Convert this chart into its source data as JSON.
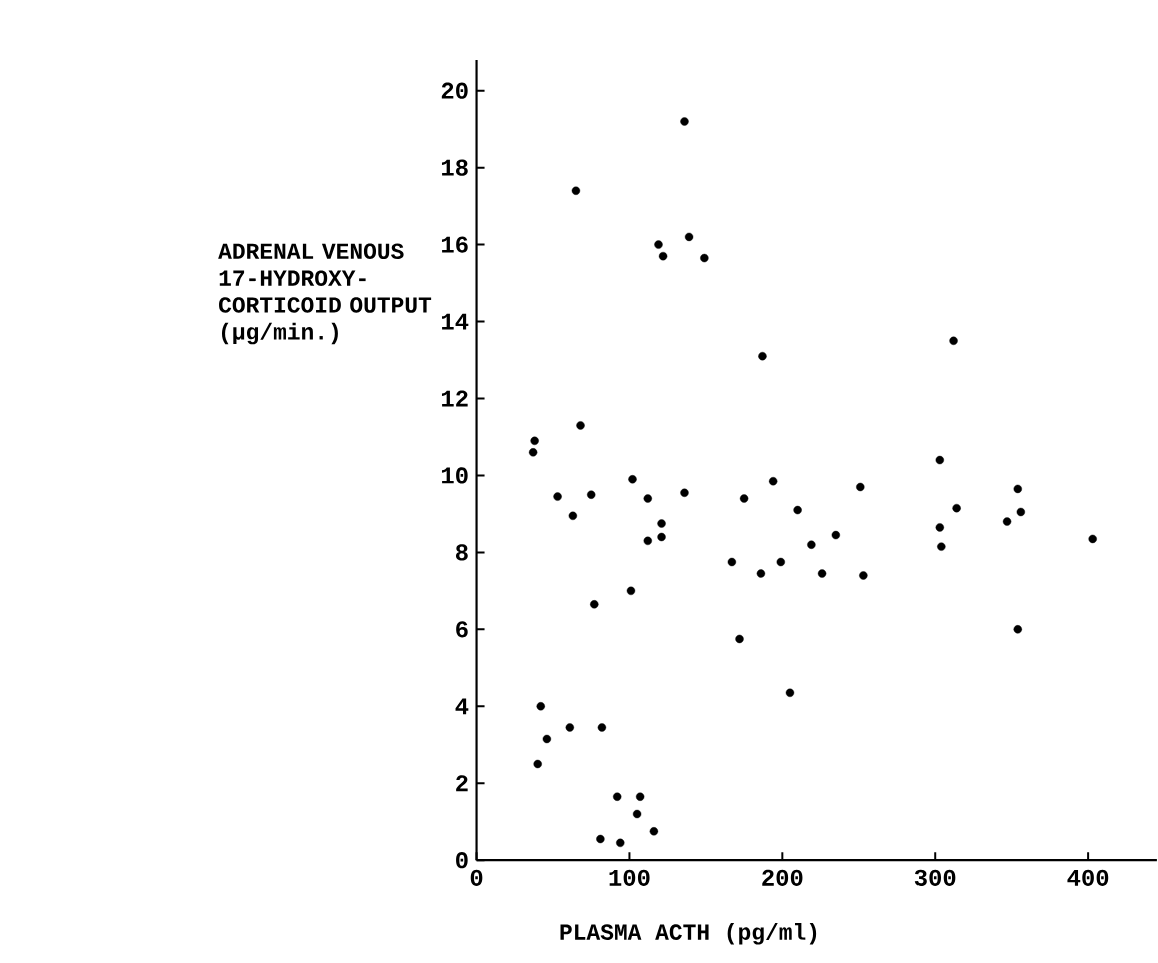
{
  "chart_data": {
    "type": "scatter",
    "xlabel": "PLASMA ACTH (pg/ml)",
    "ylabel": "ADRENAL VENOUS 17-HYDROXY-CORTICOID OUTPUT (µg/min.)",
    "xlim": [
      0,
      445
    ],
    "ylim": [
      0,
      20.8
    ],
    "xticks": [
      0,
      100,
      200,
      300,
      400
    ],
    "yticks": [
      0,
      2,
      4,
      6,
      8,
      10,
      12,
      14,
      16,
      18,
      20
    ],
    "grid": false,
    "series": [
      {
        "color": "#000000",
        "x": [
          136,
          65,
          119,
          139,
          122,
          149,
          187,
          312,
          68,
          38,
          37,
          303,
          102,
          194,
          53,
          75,
          112,
          136,
          175,
          251,
          354,
          63,
          210,
          314,
          356,
          121,
          121,
          112,
          303,
          304,
          347,
          235,
          219,
          403,
          167,
          199,
          186,
          226,
          253,
          101,
          77,
          172,
          354,
          205,
          42,
          46,
          61,
          82,
          40,
          92,
          107,
          105,
          116,
          81,
          94
        ],
        "values": [
          19.2,
          17.4,
          16.0,
          16.2,
          15.7,
          15.65,
          13.1,
          13.5,
          11.3,
          10.9,
          10.6,
          10.4,
          9.9,
          9.85,
          9.45,
          9.5,
          9.4,
          9.55,
          9.4,
          9.7,
          9.65,
          8.95,
          9.1,
          9.15,
          9.05,
          8.75,
          8.4,
          8.3,
          8.65,
          8.15,
          8.8,
          8.45,
          8.2,
          8.35,
          7.75,
          7.75,
          7.45,
          7.45,
          7.4,
          7.0,
          6.65,
          5.75,
          6.0,
          4.35,
          4.0,
          3.15,
          3.45,
          3.45,
          2.5,
          1.65,
          1.65,
          1.2,
          0.75,
          0.55,
          0.45
        ]
      }
    ]
  }
}
